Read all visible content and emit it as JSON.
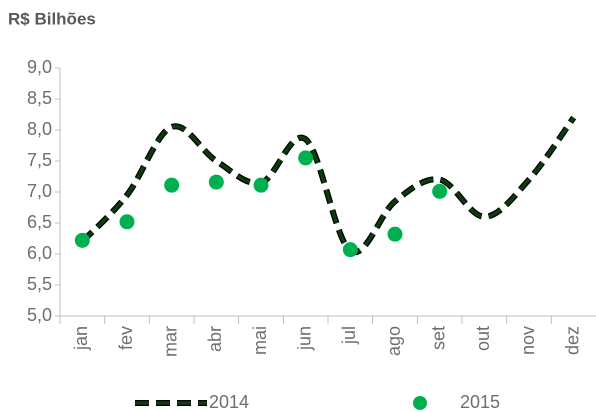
{
  "chart_data": {
    "type": "line",
    "ylabel": "R$ Bilhões",
    "categories": [
      "jan",
      "fev",
      "mar",
      "abr",
      "mai",
      "jun",
      "jul",
      "ago",
      "set",
      "out",
      "nov",
      "dez"
    ],
    "series": [
      {
        "name": "2014",
        "color": "#0d3b0d",
        "style": "dashed",
        "values": [
          6.2,
          6.95,
          8.05,
          7.5,
          7.15,
          7.85,
          6.05,
          6.85,
          7.2,
          6.6,
          7.2,
          8.2
        ]
      },
      {
        "name": "2015",
        "color": "#00b050",
        "style": "markers",
        "values": [
          6.22,
          6.52,
          7.11,
          7.16,
          7.11,
          7.55,
          6.07,
          6.32,
          7.01,
          null,
          null,
          null
        ]
      }
    ],
    "ylim": [
      5,
      9
    ],
    "yticks": [
      {
        "value": 5,
        "label": "5,0"
      },
      {
        "value": 5.5,
        "label": "5,5"
      },
      {
        "value": 6,
        "label": "6,0"
      },
      {
        "value": 6.5,
        "label": "6,5"
      },
      {
        "value": 7,
        "label": "7,0"
      },
      {
        "value": 7.5,
        "label": "7,5"
      },
      {
        "value": 8,
        "label": "8,0"
      },
      {
        "value": 8.5,
        "label": "8,5"
      },
      {
        "value": 9,
        "label": "9,0"
      }
    ],
    "legend": "bottom"
  }
}
